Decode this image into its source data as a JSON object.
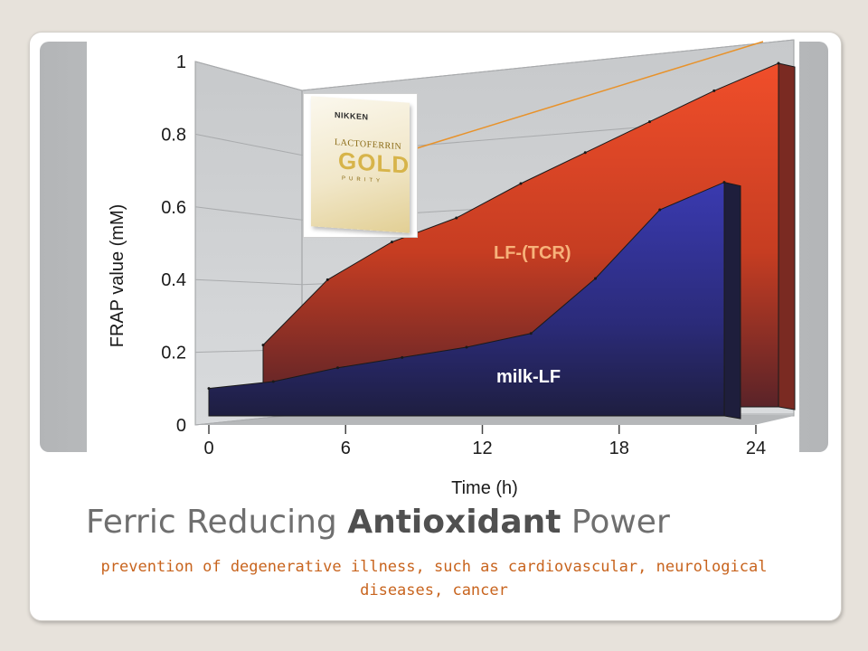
{
  "slide": {
    "title_parts": [
      "Ferric Reducing ",
      "Antioxidant",
      " Power"
    ],
    "subtitle": "prevention of degenerative illness, such as cardiovascular, neurological diseases, cancer"
  },
  "product_image": {
    "brand": "NIKKEN",
    "line1": "LACTOFERRIN",
    "line2": "GOLD",
    "line3": "PURITY"
  },
  "colors": {
    "lf_tcr": "#d84a2a",
    "milk_lf": "#2c2c74",
    "walls": "#c9cbcd",
    "background": "#e7e2db",
    "subtitle": "#c8641e",
    "pointer_line": "#e8922a"
  },
  "chart_data": {
    "type": "area",
    "xlabel": "Time (h)",
    "ylabel": "FRAP value (mM)",
    "x_ticks": [
      "0",
      "6",
      "12",
      "18",
      "24"
    ],
    "y_ticks": [
      "0",
      "0.2",
      "0.4",
      "0.6",
      "0.8",
      "1"
    ],
    "xlim": [
      0,
      24
    ],
    "ylim": [
      0,
      1
    ],
    "grid": true,
    "style": "3d-area",
    "series": [
      {
        "name": "LF-(TCR)",
        "x": [
          0,
          3,
          6,
          9,
          12,
          15,
          18,
          21,
          24
        ],
        "values": [
          0.18,
          0.37,
          0.48,
          0.55,
          0.65,
          0.74,
          0.83,
          0.92,
          1.0
        ]
      },
      {
        "name": "milk-LF",
        "x": [
          0,
          3,
          6,
          9,
          12,
          15,
          18,
          21,
          24
        ],
        "values": [
          0.08,
          0.1,
          0.14,
          0.17,
          0.2,
          0.24,
          0.4,
          0.6,
          0.68
        ]
      }
    ]
  }
}
